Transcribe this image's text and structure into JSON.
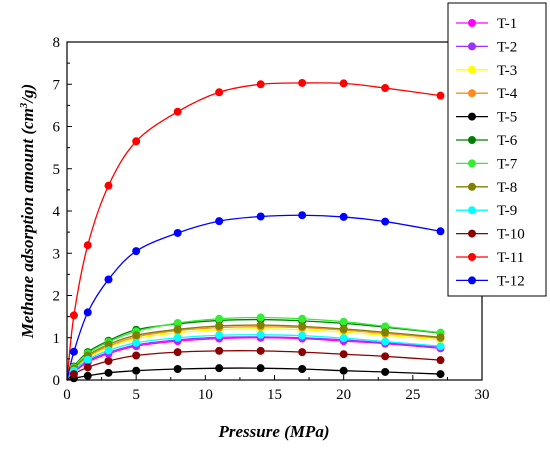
{
  "chart_data": {
    "type": "line",
    "title": "",
    "xlabel": "Pressure (MPa)",
    "ylabel_main": "Methane adsorption amount (cm",
    "ylabel_sup": "3",
    "ylabel_end": "/g)",
    "xlim": [
      0,
      30
    ],
    "ylim": [
      0,
      8
    ],
    "x_ticks": [
      "0",
      "5",
      "10",
      "15",
      "20",
      "25",
      "30"
    ],
    "y_ticks": [
      "0",
      "1",
      "2",
      "3",
      "4",
      "5",
      "6",
      "7",
      "8"
    ],
    "grid": false,
    "legend_position": "right",
    "x": [
      0.5,
      1.5,
      3,
      5,
      8,
      11,
      14,
      17,
      20,
      23,
      27
    ],
    "series": [
      {
        "name": "T-1",
        "color": "#FF00FF",
        "values": [
          0.18,
          0.42,
          0.62,
          0.8,
          0.92,
          0.98,
          1.0,
          0.98,
          0.92,
          0.86,
          0.75
        ]
      },
      {
        "name": "T-2",
        "color": "#9B30FF",
        "values": [
          0.2,
          0.45,
          0.65,
          0.83,
          0.95,
          1.01,
          1.02,
          1.0,
          0.95,
          0.88,
          0.78
        ]
      },
      {
        "name": "T-3",
        "color": "#FFFF00",
        "values": [
          0.24,
          0.52,
          0.77,
          0.98,
          1.12,
          1.19,
          1.21,
          1.19,
          1.13,
          1.06,
          0.95
        ]
      },
      {
        "name": "T-4",
        "color": "#FF8C1A",
        "values": [
          0.26,
          0.55,
          0.8,
          1.02,
          1.17,
          1.24,
          1.26,
          1.24,
          1.18,
          1.1,
          0.99
        ]
      },
      {
        "name": "T-5",
        "color": "#000000",
        "values": [
          0.04,
          0.1,
          0.17,
          0.22,
          0.26,
          0.28,
          0.28,
          0.26,
          0.22,
          0.19,
          0.14
        ]
      },
      {
        "name": "T-6",
        "color": "#008000",
        "values": [
          0.32,
          0.66,
          0.93,
          1.19,
          1.33,
          1.41,
          1.43,
          1.4,
          1.34,
          1.25,
          1.11
        ]
      },
      {
        "name": "T-7",
        "color": "#33EE33",
        "values": [
          0.3,
          0.63,
          0.9,
          1.15,
          1.35,
          1.45,
          1.48,
          1.45,
          1.38,
          1.27,
          1.12
        ]
      },
      {
        "name": "T-8",
        "color": "#808000",
        "values": [
          0.27,
          0.58,
          0.84,
          1.06,
          1.2,
          1.28,
          1.3,
          1.27,
          1.21,
          1.13,
          1.01
        ]
      },
      {
        "name": "T-9",
        "color": "#00FFFF",
        "values": [
          0.22,
          0.48,
          0.7,
          0.88,
          1.0,
          1.06,
          1.07,
          1.05,
          0.99,
          0.91,
          0.8
        ]
      },
      {
        "name": "T-10",
        "color": "#8B0000",
        "values": [
          0.14,
          0.3,
          0.45,
          0.58,
          0.66,
          0.69,
          0.69,
          0.66,
          0.61,
          0.56,
          0.47
        ]
      },
      {
        "name": "T-11",
        "color": "#FF0000",
        "values": [
          1.53,
          3.19,
          4.6,
          5.65,
          6.35,
          6.81,
          7.0,
          7.03,
          7.02,
          6.91,
          6.73
        ]
      },
      {
        "name": "T-12",
        "color": "#0000FF",
        "values": [
          0.67,
          1.6,
          2.38,
          3.05,
          3.48,
          3.76,
          3.87,
          3.9,
          3.86,
          3.75,
          3.52
        ]
      }
    ]
  }
}
